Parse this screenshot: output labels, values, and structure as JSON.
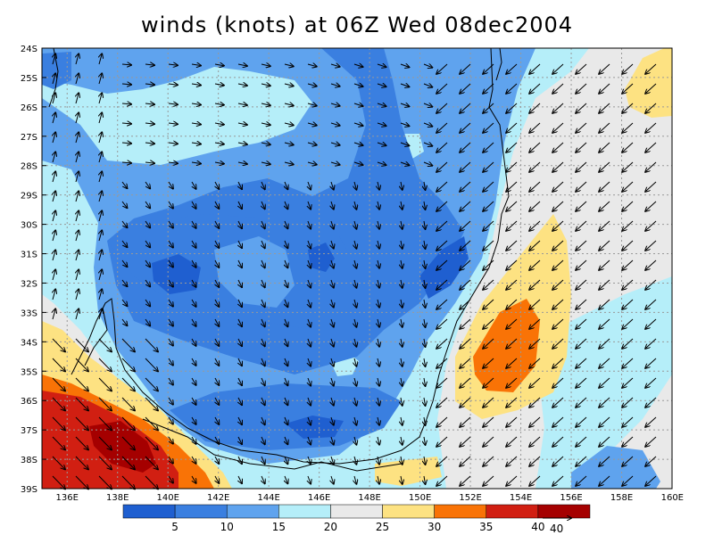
{
  "title": "winds (knots) at 06Z Wed 08dec2004",
  "map": {
    "lat_labels": [
      "24S",
      "25S",
      "26S",
      "27S",
      "28S",
      "29S",
      "30S",
      "31S",
      "32S",
      "33S",
      "34S",
      "35S",
      "36S",
      "37S",
      "38S",
      "39S"
    ],
    "lon_labels": [
      "136E",
      "138E",
      "140E",
      "142E",
      "144E",
      "146E",
      "148E",
      "150E",
      "152E",
      "154E",
      "156E",
      "158E",
      "160E"
    ],
    "grid": true
  },
  "colorbar": {
    "colors": [
      "#1f5fd0",
      "#3a7fe0",
      "#5fa3ee",
      "#b5eef9",
      "#e9e9e9",
      "#fde282",
      "#f97306",
      "#d11f12",
      "#a50000"
    ],
    "labels": [
      "5",
      "10",
      "15",
      "20",
      "25",
      "30",
      "35",
      "40"
    ]
  },
  "reference_vector": {
    "label": "40"
  }
}
